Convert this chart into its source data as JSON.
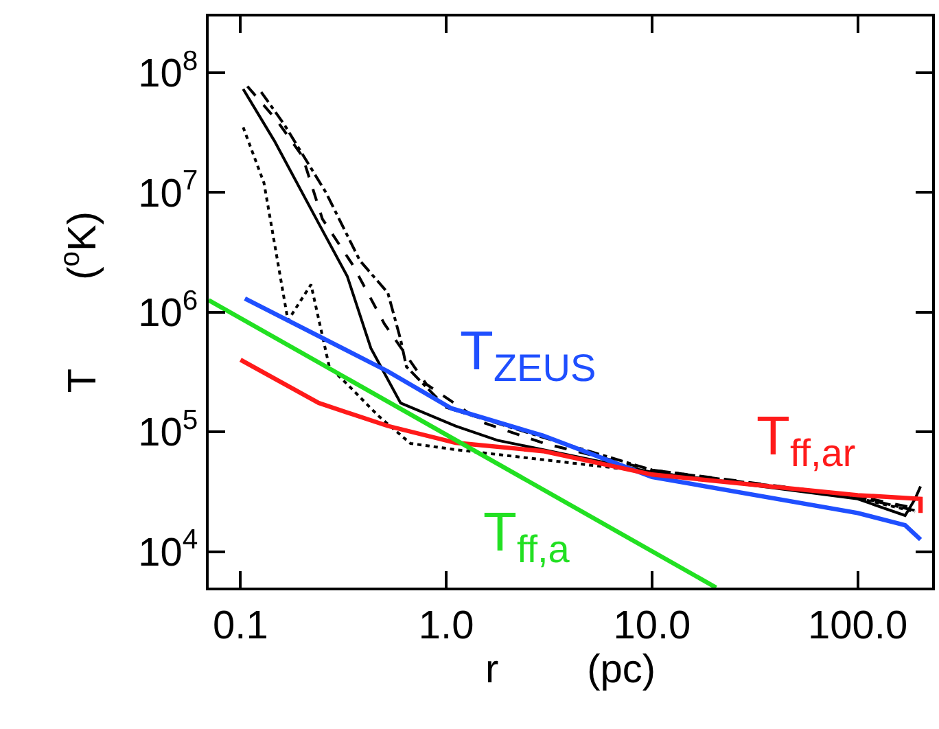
{
  "chart_data": {
    "type": "line",
    "xlabel": "r        (pc)",
    "ylabel": "T        ($^{o}$K)",
    "log": "xy",
    "legend": false,
    "marker": "none",
    "xlim": [
      0.07,
      230
    ],
    "ylim": [
      5000,
      295000000
    ],
    "xticks": [
      {
        "value": 0.1,
        "label": "0.1"
      },
      {
        "value": 1,
        "label": "1.0"
      },
      {
        "value": 10,
        "label": "10.0"
      },
      {
        "value": 100,
        "label": "100.0"
      }
    ],
    "yticks": [
      {
        "value": 10000,
        "label": "10$^{4}$"
      },
      {
        "value": 100000,
        "label": "10$^{5}$"
      },
      {
        "value": 1000000,
        "label": "10$^{6}$"
      },
      {
        "value": 10000000,
        "label": "10$^{7}$"
      },
      {
        "value": 100000000,
        "label": "10$^{8}$"
      }
    ],
    "series": [
      {
        "color": "#000000",
        "line_style": "solid",
        "x": [
          0.103,
          0.146,
          0.24,
          0.33,
          0.43,
          0.6,
          1.11,
          1.77,
          10,
          100,
          170,
          190,
          202
        ],
        "values": [
          73000000,
          27000000,
          5500000,
          2000000,
          500000,
          174000,
          112000,
          85000,
          46000,
          27500,
          20000,
          27500,
          35000
        ]
      },
      {
        "color": "#000000",
        "line_style": "dashed",
        "x": [
          0.108,
          0.15,
          0.2,
          0.25,
          0.35,
          0.5,
          0.8,
          1.5,
          3,
          10,
          100,
          190
        ],
        "values": [
          77000000,
          40000000,
          20000000,
          6000000,
          2500000,
          800000,
          250000,
          120000,
          80000,
          48000,
          29000,
          23000
        ]
      },
      {
        "color": "#000000",
        "line_style": "dashdot",
        "x": [
          0.126,
          0.163,
          0.26,
          0.38,
          0.52,
          0.6,
          0.64,
          1.0,
          2.95,
          10,
          100,
          190
        ],
        "values": [
          69000000,
          37000000,
          10000000,
          2700000,
          1450000,
          590000,
          350000,
          160000,
          90000,
          48000,
          28500,
          22000
        ]
      },
      {
        "color": "#000000",
        "line_style": "dotted",
        "x": [
          0.103,
          0.13,
          0.17,
          0.22,
          0.27,
          0.33,
          0.47,
          0.67,
          1.11,
          10,
          100,
          190
        ],
        "values": [
          35000000,
          12000000,
          850000,
          1700000,
          350000,
          250000,
          135000,
          80000,
          71000,
          46000,
          28000,
          21500
        ]
      },
      {
        "name": "T$_{ZEUS}$",
        "color": "#1f4fff",
        "line_style": "solid",
        "x": [
          0.105,
          0.52,
          1.06,
          2.95,
          10,
          100,
          170,
          202
        ],
        "values": [
          1300000,
          320000,
          157000,
          93000,
          42000,
          21000,
          16600,
          12600
        ]
      },
      {
        "name": "T$_{ff,ar}$",
        "color": "#ff1a1a",
        "line_style": "solid",
        "x": [
          0.1,
          0.24,
          0.52,
          1.11,
          2.95,
          10,
          100,
          202,
          202
        ],
        "values": [
          400000,
          174000,
          112000,
          81000,
          69000,
          44000,
          29600,
          27500,
          21000
        ]
      },
      {
        "name": "T$_{ff,a}$",
        "color": "#22e022",
        "line_style": "solid",
        "x": [
          0.07,
          20.5
        ],
        "values": [
          1260000,
          5000
        ]
      }
    ]
  }
}
